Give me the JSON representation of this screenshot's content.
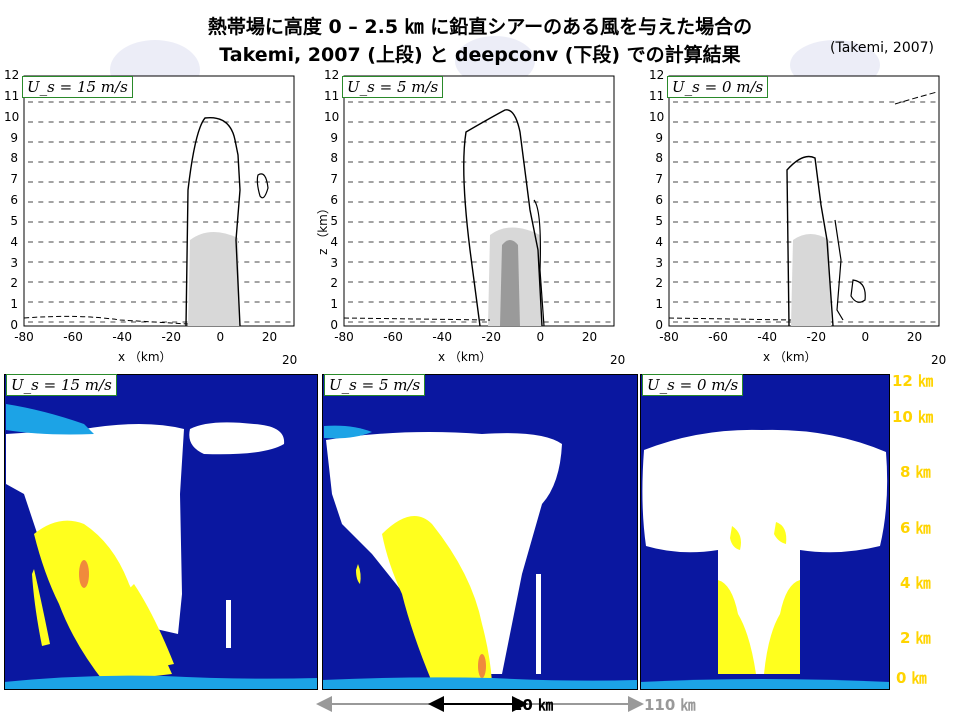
{
  "title": {
    "line1": "熱帯場に高度 0 – 2.5 ㎞ に鉛直シアーのある風を与えた場合の",
    "line2": "Takemi, 2007 (上段) と deepconv (下段) での計算結果",
    "citation": "(Takemi, 2007)"
  },
  "top_panels": [
    {
      "shear_label": "U_s = 15 m/s"
    },
    {
      "shear_label": "U_s = 5 m/s"
    },
    {
      "shear_label": "U_s = 0 m/s"
    }
  ],
  "bottom_panels": [
    {
      "shear_label": "U_s = 15 m/s"
    },
    {
      "shear_label": "U_s = 5 m/s"
    },
    {
      "shear_label": "U_s = 0 m/s"
    }
  ],
  "axes": {
    "y_ticks": [
      "0",
      "1",
      "2",
      "3",
      "4",
      "5",
      "6",
      "7",
      "8",
      "9",
      "10",
      "11",
      "12"
    ],
    "x_ticks": [
      "-80",
      "-60",
      "-40",
      "-20",
      "0",
      "20"
    ],
    "x_label": "x （km）",
    "y_label": "z （km）",
    "arrow_ref": "20"
  },
  "height_labels": [
    "12 ㎞",
    "10 ㎞",
    "8 ㎞",
    "6 ㎞",
    "4 ㎞",
    "2 ㎞",
    "0 ㎞"
  ],
  "scale_bars": {
    "short": "20 ㎞",
    "long": "110 ㎞"
  },
  "colors": {
    "background_blue": "#0a17a0",
    "light_blue": "#1ca3e6",
    "yellow": "#ffff1e",
    "orange": "#f08a3c",
    "contour": "#000000",
    "shade_light": "#d8d8d8",
    "shade_dark": "#9a9a9a"
  },
  "chart_data": [
    {
      "type": "heatmap",
      "title": "",
      "panel": "Takemi 2007, U_s = 15 m/s",
      "xlabel": "x (km)",
      "ylabel": "z (km)",
      "xlim": [
        -80,
        30
      ],
      "ylim": [
        0,
        12
      ]
    },
    {
      "type": "heatmap",
      "title": "",
      "panel": "Takemi 2007, U_s = 5 m/s",
      "xlabel": "x (km)",
      "ylabel": "z (km)",
      "xlim": [
        -80,
        30
      ],
      "ylim": [
        0,
        12
      ]
    },
    {
      "type": "heatmap",
      "title": "",
      "panel": "Takemi 2007, U_s = 0 m/s",
      "xlabel": "x (km)",
      "ylabel": "z (km)",
      "xlim": [
        -80,
        30
      ],
      "ylim": [
        0,
        12
      ]
    },
    {
      "type": "heatmap",
      "title": "",
      "panel": "deepconv, U_s = 15 m/s",
      "ylim": [
        0,
        12
      ]
    },
    {
      "type": "heatmap",
      "title": "",
      "panel": "deepconv, U_s = 5 m/s",
      "ylim": [
        0,
        12
      ]
    },
    {
      "type": "heatmap",
      "title": "",
      "panel": "deepconv, U_s = 0 m/s",
      "ylim": [
        0,
        12
      ]
    }
  ]
}
